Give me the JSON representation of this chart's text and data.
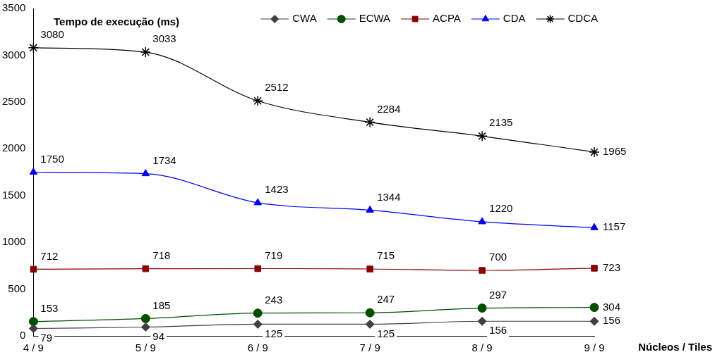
{
  "chart_data": {
    "type": "line",
    "ylabel": "Tempo de execução (ms)",
    "xlabel": "Núcleos / Tiles",
    "categories": [
      "4 / 9",
      "5 / 9",
      "6 / 9",
      "7 / 9",
      "8 / 9",
      "9 / 9"
    ],
    "series": [
      {
        "name": "CWA",
        "color": "#404040",
        "marker": "diamond",
        "values": [
          79,
          94,
          125,
          125,
          156,
          156
        ]
      },
      {
        "name": "ECWA",
        "color": "#005000",
        "marker": "circle",
        "values": [
          153,
          185,
          243,
          247,
          297,
          304
        ]
      },
      {
        "name": "ACPA",
        "color": "#8b0000",
        "marker": "square",
        "values": [
          712,
          718,
          719,
          715,
          700,
          723
        ]
      },
      {
        "name": "CDA",
        "color": "#0000ff",
        "marker": "triangle",
        "values": [
          1750,
          1734,
          1423,
          1344,
          1220,
          1157
        ]
      },
      {
        "name": "CDCA",
        "color": "#000000",
        "marker": "cross",
        "values": [
          3080,
          3033,
          2512,
          2284,
          2135,
          1965
        ]
      }
    ],
    "ylim": [
      0,
      3500
    ],
    "yticks": [
      0,
      500,
      1000,
      1500,
      2000,
      2500,
      3000,
      3500
    ],
    "grid": false,
    "legend": "top right",
    "data_labels": true
  }
}
